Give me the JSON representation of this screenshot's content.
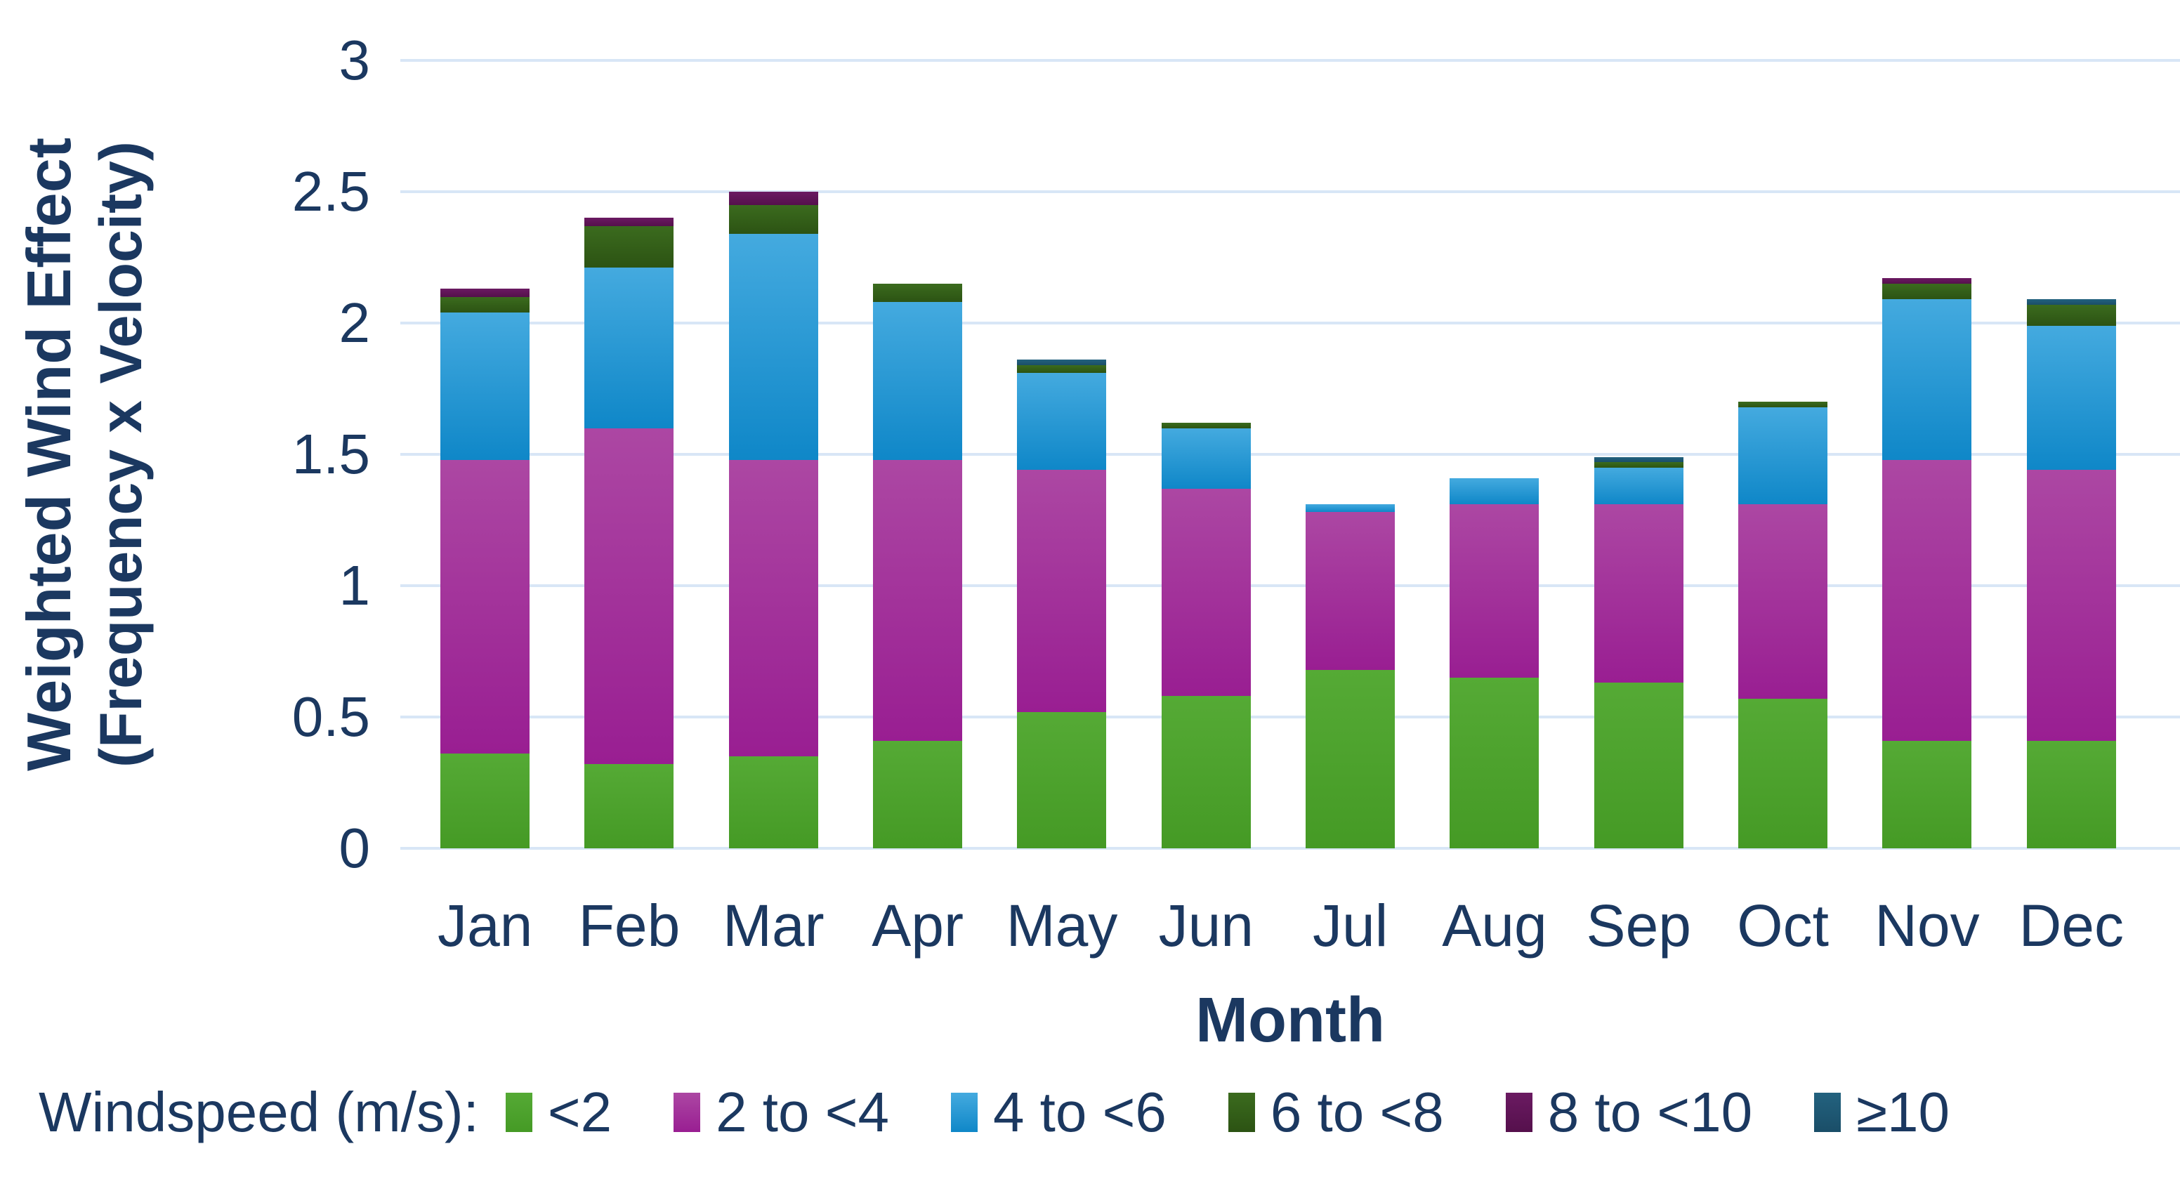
{
  "colors": {
    "text": "#1B3860",
    "gridline": "#D8E6F6",
    "background": "#FFFFFF"
  },
  "chart_data": {
    "type": "bar",
    "stacked": true,
    "title": "",
    "xlabel": "Month",
    "ylabel_line1": "Weighted Wind Effect",
    "ylabel_line2": "(Frequency x Velocity)",
    "legend_title": "Windspeed (m/s):",
    "legend_position": "bottom",
    "grid": true,
    "ylim": [
      0,
      3
    ],
    "yticks": [
      0,
      0.5,
      1,
      1.5,
      2,
      2.5,
      3
    ],
    "categories": [
      "Jan",
      "Feb",
      "Mar",
      "Apr",
      "May",
      "Jun",
      "Jul",
      "Aug",
      "Sep",
      "Oct",
      "Nov",
      "Dec"
    ],
    "series": [
      {
        "name": "<2",
        "color": "#55AA35",
        "color2": "#459A25",
        "values": [
          0.36,
          0.32,
          0.35,
          0.41,
          0.52,
          0.58,
          0.68,
          0.65,
          0.63,
          0.57,
          0.41,
          0.41
        ]
      },
      {
        "name": "2 to <4",
        "color": "#AC47A3",
        "color2": "#991E92",
        "values": [
          1.12,
          1.28,
          1.13,
          1.07,
          0.92,
          0.79,
          0.6,
          0.66,
          0.68,
          0.74,
          1.07,
          1.03
        ]
      },
      {
        "name": "4 to <6",
        "color": "#44AADF",
        "color2": "#0F87C8",
        "values": [
          0.56,
          0.61,
          0.86,
          0.6,
          0.37,
          0.23,
          0.03,
          0.1,
          0.14,
          0.37,
          0.61,
          0.55
        ]
      },
      {
        "name": "6 to <8",
        "color": "#3B6B1E",
        "color2": "#2C5313",
        "values": [
          0.06,
          0.16,
          0.11,
          0.07,
          0.03,
          0.02,
          0.0,
          0.0,
          0.02,
          0.02,
          0.06,
          0.08
        ]
      },
      {
        "name": "8 to <10",
        "color": "#6B1A62",
        "color2": "#55104C",
        "values": [
          0.03,
          0.03,
          0.05,
          0.0,
          0.0,
          0.0,
          0.0,
          0.0,
          0.0,
          0.0,
          0.02,
          0.0
        ]
      },
      {
        "name": "≥10",
        "color": "#23627F",
        "color2": "#1A4E68",
        "values": [
          0.0,
          0.0,
          0.0,
          0.0,
          0.02,
          0.0,
          0.0,
          0.0,
          0.02,
          0.0,
          0.0,
          0.02
        ]
      }
    ],
    "totals": [
      2.13,
      2.4,
      2.5,
      2.15,
      1.86,
      1.62,
      1.31,
      1.41,
      1.49,
      1.7,
      2.17,
      2.09
    ]
  }
}
